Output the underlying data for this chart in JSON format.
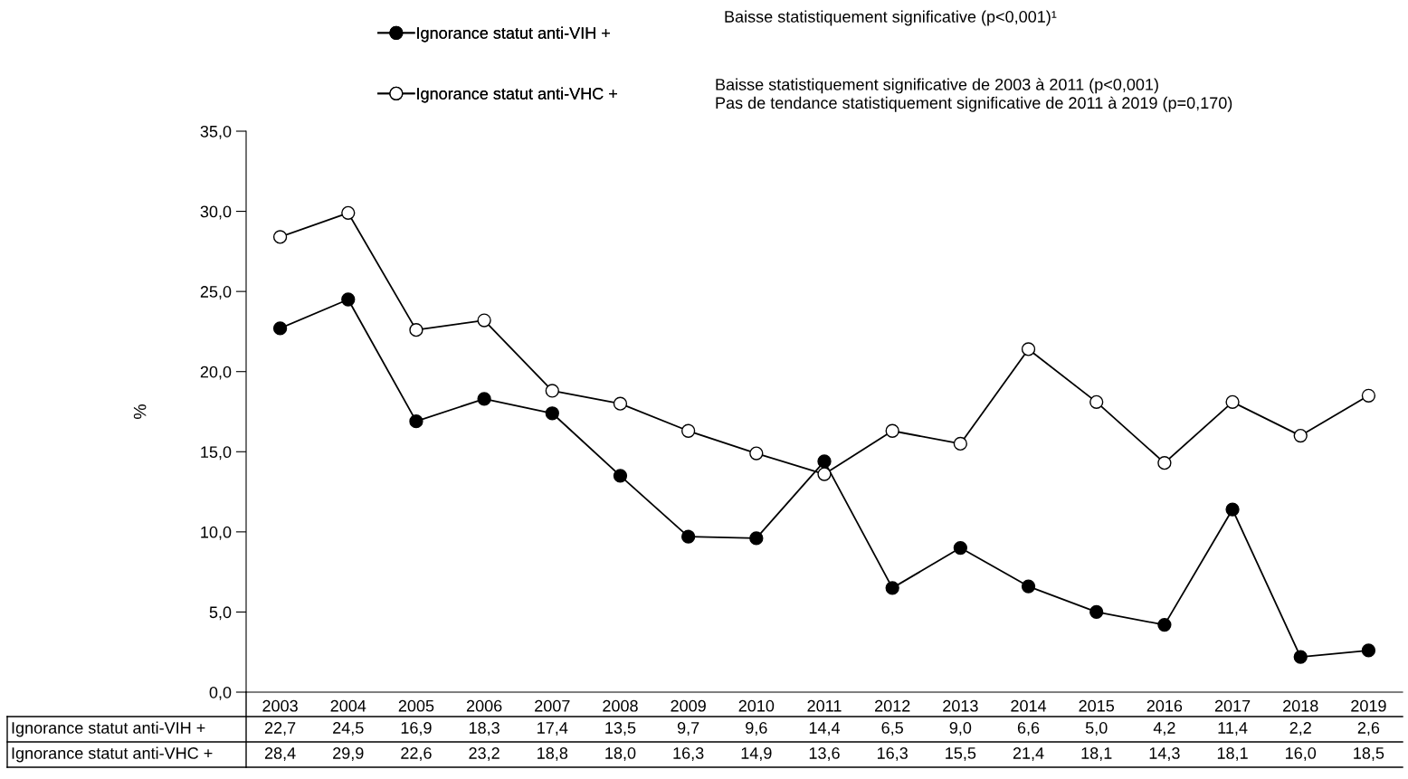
{
  "chart_data": {
    "type": "line",
    "ylabel": "%",
    "categories": [
      "2003",
      "2004",
      "2005",
      "2006",
      "2007",
      "2008",
      "2009",
      "2010",
      "2011",
      "2012",
      "2013",
      "2014",
      "2015",
      "2016",
      "2017",
      "2018",
      "2019"
    ],
    "series": [
      {
        "name": "Ignorance statut anti-VIH +",
        "color": "#000000",
        "values": [
          22.7,
          24.5,
          16.9,
          18.3,
          17.4,
          13.5,
          9.7,
          9.6,
          14.4,
          6.5,
          9.0,
          6.6,
          5.0,
          4.2,
          11.4,
          2.2,
          2.6
        ],
        "value_labels": [
          "22,7",
          "24,5",
          "16,9",
          "18,3",
          "17,4",
          "13,5",
          "9,7",
          "9,6",
          "14,4",
          "6,5",
          "9,0",
          "6,6",
          "5,0",
          "4,2",
          "11,4",
          "2,2",
          "2,6"
        ]
      },
      {
        "name": "Ignorance statut anti-VHC +",
        "color": "#000000",
        "values": [
          28.4,
          29.9,
          22.6,
          23.2,
          18.8,
          18.0,
          16.3,
          14.9,
          13.6,
          16.3,
          15.5,
          21.4,
          18.1,
          14.3,
          18.1,
          16.0,
          18.5
        ],
        "value_labels": [
          "28,4",
          "29,9",
          "22,6",
          "23,2",
          "18,8",
          "18,0",
          "16,3",
          "14,9",
          "13,6",
          "16,3",
          "15,5",
          "21,4",
          "18,1",
          "14,3",
          "18,1",
          "16,0",
          "18,5"
        ]
      }
    ],
    "ylim": [
      0,
      35
    ],
    "yticks": [
      {
        "value": 0,
        "label": "0,0"
      },
      {
        "value": 5,
        "label": "5,0"
      },
      {
        "value": 10,
        "label": "10,0"
      },
      {
        "value": 15,
        "label": "15,0"
      },
      {
        "value": 20,
        "label": "20,0"
      },
      {
        "value": 25,
        "label": "25,0"
      },
      {
        "value": 30,
        "label": "30,0"
      },
      {
        "value": 35,
        "label": "35,0"
      }
    ],
    "marker": "circle",
    "line_style": "solid",
    "grid": false,
    "legend": "top",
    "annotations": [
      "Baisse statistiquement significative (p<0,001)¹",
      "Baisse statistiquement significative de 2003 à 2011 (p<0,001)\nPas de tendance statistiquement significative de 2011 à 2019 (p=0,170)"
    ]
  }
}
